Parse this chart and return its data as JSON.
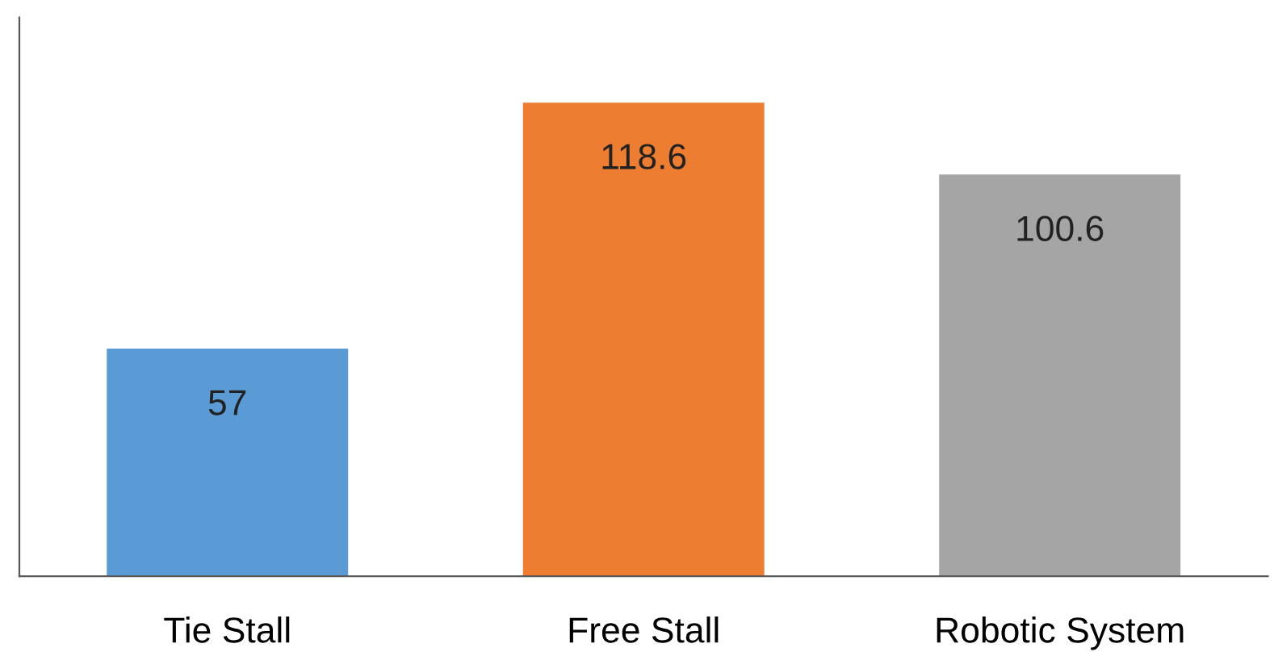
{
  "chart_data": {
    "type": "bar",
    "categories": [
      "Tie Stall",
      "Free Stall",
      "Robotic System"
    ],
    "values": [
      57,
      118.6,
      100.6
    ],
    "colors": [
      "#5b9bd5",
      "#ed7d31",
      "#a5a5a5"
    ],
    "data_labels": true,
    "grid": false,
    "legend": false
  }
}
